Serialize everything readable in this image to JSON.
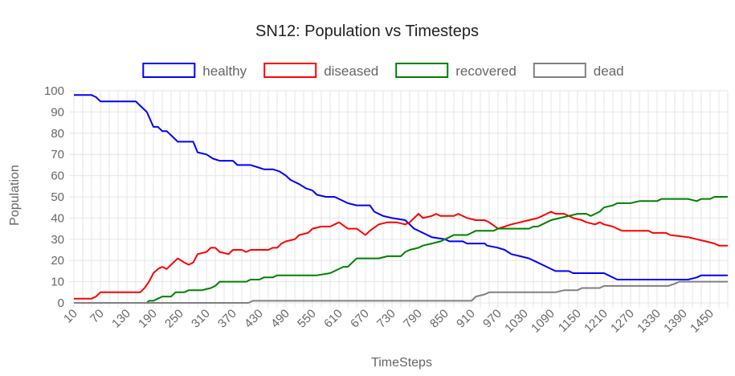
{
  "chart_data": {
    "type": "line",
    "title": "SN12: Population vs Timesteps",
    "xlabel": "TimeSteps",
    "ylabel": "Population",
    "ylim": [
      0,
      100
    ],
    "xlim": [
      10,
      1490
    ],
    "yticks": [
      0,
      10,
      20,
      30,
      40,
      50,
      60,
      70,
      80,
      90,
      100
    ],
    "xticks": [
      10,
      70,
      130,
      190,
      250,
      310,
      370,
      430,
      490,
      550,
      610,
      670,
      730,
      790,
      850,
      910,
      970,
      1030,
      1090,
      1150,
      1210,
      1270,
      1330,
      1390,
      1450
    ],
    "grid": true,
    "legend_position": "top",
    "series": [
      {
        "name": "healthy",
        "color": "#0000ff",
        "points": [
          [
            10,
            98
          ],
          [
            50,
            98
          ],
          [
            60,
            97
          ],
          [
            70,
            95
          ],
          [
            150,
            95
          ],
          [
            160,
            93
          ],
          [
            175,
            90
          ],
          [
            190,
            83
          ],
          [
            200,
            83
          ],
          [
            210,
            81
          ],
          [
            220,
            81
          ],
          [
            230,
            79
          ],
          [
            245,
            76
          ],
          [
            280,
            76
          ],
          [
            290,
            71
          ],
          [
            310,
            70
          ],
          [
            325,
            68
          ],
          [
            340,
            67
          ],
          [
            370,
            67
          ],
          [
            380,
            65
          ],
          [
            410,
            65
          ],
          [
            425,
            64
          ],
          [
            440,
            63
          ],
          [
            460,
            63
          ],
          [
            475,
            62
          ],
          [
            490,
            60
          ],
          [
            500,
            58
          ],
          [
            520,
            56
          ],
          [
            535,
            54
          ],
          [
            550,
            53
          ],
          [
            560,
            51
          ],
          [
            580,
            50
          ],
          [
            600,
            50
          ],
          [
            610,
            49
          ],
          [
            630,
            47
          ],
          [
            650,
            46
          ],
          [
            680,
            46
          ],
          [
            690,
            43
          ],
          [
            710,
            41
          ],
          [
            730,
            40
          ],
          [
            760,
            39
          ],
          [
            780,
            35
          ],
          [
            790,
            34
          ],
          [
            800,
            33
          ],
          [
            820,
            31
          ],
          [
            850,
            30
          ],
          [
            860,
            29
          ],
          [
            890,
            29
          ],
          [
            900,
            28
          ],
          [
            940,
            28
          ],
          [
            945,
            27
          ],
          [
            970,
            26
          ],
          [
            985,
            25
          ],
          [
            1000,
            23
          ],
          [
            1020,
            22
          ],
          [
            1040,
            21
          ],
          [
            1060,
            19
          ],
          [
            1080,
            17
          ],
          [
            1100,
            15
          ],
          [
            1130,
            15
          ],
          [
            1140,
            14
          ],
          [
            1210,
            14
          ],
          [
            1220,
            13
          ],
          [
            1240,
            11
          ],
          [
            1390,
            11
          ],
          [
            1400,
            11
          ],
          [
            1420,
            12
          ],
          [
            1430,
            13
          ],
          [
            1490,
            13
          ]
        ]
      },
      {
        "name": "diseased",
        "color": "#ff0000",
        "points": [
          [
            10,
            2
          ],
          [
            50,
            2
          ],
          [
            60,
            3
          ],
          [
            70,
            5
          ],
          [
            160,
            5
          ],
          [
            170,
            7
          ],
          [
            180,
            10
          ],
          [
            190,
            14
          ],
          [
            200,
            16
          ],
          [
            210,
            17
          ],
          [
            220,
            16
          ],
          [
            230,
            18
          ],
          [
            240,
            20
          ],
          [
            245,
            21
          ],
          [
            260,
            19
          ],
          [
            270,
            18
          ],
          [
            280,
            19
          ],
          [
            290,
            23
          ],
          [
            310,
            24
          ],
          [
            320,
            26
          ],
          [
            330,
            26
          ],
          [
            340,
            24
          ],
          [
            360,
            23
          ],
          [
            370,
            25
          ],
          [
            390,
            25
          ],
          [
            400,
            24
          ],
          [
            410,
            25
          ],
          [
            450,
            25
          ],
          [
            460,
            26
          ],
          [
            470,
            26
          ],
          [
            480,
            28
          ],
          [
            490,
            29
          ],
          [
            510,
            30
          ],
          [
            520,
            32
          ],
          [
            540,
            33
          ],
          [
            550,
            35
          ],
          [
            570,
            36
          ],
          [
            590,
            36
          ],
          [
            610,
            38
          ],
          [
            630,
            35
          ],
          [
            640,
            35
          ],
          [
            650,
            35
          ],
          [
            670,
            32
          ],
          [
            680,
            34
          ],
          [
            700,
            37
          ],
          [
            720,
            38
          ],
          [
            740,
            38
          ],
          [
            760,
            37
          ],
          [
            770,
            38
          ],
          [
            780,
            40
          ],
          [
            790,
            42
          ],
          [
            800,
            40
          ],
          [
            820,
            41
          ],
          [
            830,
            42
          ],
          [
            840,
            41
          ],
          [
            860,
            41
          ],
          [
            870,
            41
          ],
          [
            880,
            42
          ],
          [
            900,
            40
          ],
          [
            920,
            39
          ],
          [
            940,
            39
          ],
          [
            950,
            38
          ],
          [
            970,
            35
          ],
          [
            985,
            36
          ],
          [
            1000,
            37
          ],
          [
            1020,
            38
          ],
          [
            1040,
            39
          ],
          [
            1060,
            40
          ],
          [
            1070,
            41
          ],
          [
            1080,
            42
          ],
          [
            1090,
            43
          ],
          [
            1100,
            42
          ],
          [
            1120,
            42
          ],
          [
            1140,
            40
          ],
          [
            1160,
            39
          ],
          [
            1170,
            38
          ],
          [
            1190,
            37
          ],
          [
            1200,
            38
          ],
          [
            1210,
            37
          ],
          [
            1230,
            36
          ],
          [
            1240,
            35
          ],
          [
            1250,
            34
          ],
          [
            1310,
            34
          ],
          [
            1320,
            33
          ],
          [
            1350,
            33
          ],
          [
            1360,
            32
          ],
          [
            1400,
            31
          ],
          [
            1420,
            30
          ],
          [
            1440,
            29
          ],
          [
            1460,
            28
          ],
          [
            1470,
            27
          ],
          [
            1490,
            27
          ]
        ]
      },
      {
        "name": "recovered",
        "color": "#008000",
        "points": [
          [
            10,
            0
          ],
          [
            175,
            0
          ],
          [
            180,
            1
          ],
          [
            190,
            1
          ],
          [
            200,
            2
          ],
          [
            210,
            3
          ],
          [
            230,
            3
          ],
          [
            240,
            5
          ],
          [
            260,
            5
          ],
          [
            270,
            6
          ],
          [
            300,
            6
          ],
          [
            320,
            7
          ],
          [
            330,
            8
          ],
          [
            340,
            10
          ],
          [
            400,
            10
          ],
          [
            410,
            11
          ],
          [
            430,
            11
          ],
          [
            440,
            12
          ],
          [
            460,
            12
          ],
          [
            470,
            13
          ],
          [
            560,
            13
          ],
          [
            590,
            14
          ],
          [
            600,
            15
          ],
          [
            620,
            17
          ],
          [
            630,
            17
          ],
          [
            640,
            19
          ],
          [
            650,
            21
          ],
          [
            700,
            21
          ],
          [
            720,
            22
          ],
          [
            750,
            22
          ],
          [
            760,
            24
          ],
          [
            770,
            25
          ],
          [
            790,
            26
          ],
          [
            800,
            27
          ],
          [
            820,
            28
          ],
          [
            840,
            29
          ],
          [
            850,
            30
          ],
          [
            860,
            31
          ],
          [
            870,
            32
          ],
          [
            900,
            32
          ],
          [
            910,
            33
          ],
          [
            920,
            34
          ],
          [
            960,
            34
          ],
          [
            970,
            35
          ],
          [
            1040,
            35
          ],
          [
            1050,
            36
          ],
          [
            1060,
            36
          ],
          [
            1070,
            37
          ],
          [
            1080,
            38
          ],
          [
            1090,
            39
          ],
          [
            1110,
            40
          ],
          [
            1130,
            41
          ],
          [
            1150,
            42
          ],
          [
            1170,
            42
          ],
          [
            1180,
            41
          ],
          [
            1190,
            42
          ],
          [
            1200,
            43
          ],
          [
            1210,
            45
          ],
          [
            1230,
            46
          ],
          [
            1240,
            47
          ],
          [
            1270,
            47
          ],
          [
            1290,
            48
          ],
          [
            1330,
            48
          ],
          [
            1340,
            49
          ],
          [
            1400,
            49
          ],
          [
            1420,
            48
          ],
          [
            1430,
            49
          ],
          [
            1450,
            49
          ],
          [
            1460,
            50
          ],
          [
            1490,
            50
          ]
        ]
      },
      {
        "name": "dead",
        "color": "#808080",
        "points": [
          [
            10,
            0
          ],
          [
            405,
            0
          ],
          [
            415,
            1
          ],
          [
            910,
            1
          ],
          [
            920,
            3
          ],
          [
            940,
            4
          ],
          [
            950,
            5
          ],
          [
            1100,
            5
          ],
          [
            1120,
            6
          ],
          [
            1150,
            6
          ],
          [
            1160,
            7
          ],
          [
            1200,
            7
          ],
          [
            1210,
            8
          ],
          [
            1355,
            8
          ],
          [
            1370,
            9
          ],
          [
            1380,
            10
          ],
          [
            1490,
            10
          ]
        ]
      }
    ]
  }
}
